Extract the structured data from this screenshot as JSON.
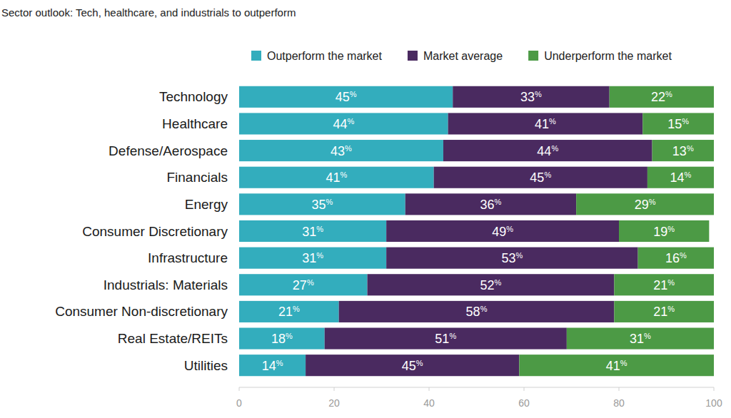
{
  "chart_data": {
    "type": "bar",
    "orientation": "horizontal",
    "stacked": true,
    "data_labels": true,
    "grid": false,
    "legend": "top",
    "title": "Sector outlook: Tech, healthcare, and industrials to outperform",
    "categories": [
      "Technology",
      "Healthcare",
      "Defense/Aerospace",
      "Financials",
      "Energy",
      "Consumer Discretionary",
      "Infrastructure",
      "Industrials: Materials",
      "Consumer Non-discretionary",
      "Real Estate/REITs",
      "Utilities"
    ],
    "series": [
      {
        "name": "Outperform the market",
        "color": "#33adbd",
        "values": [
          45,
          44,
          43,
          41,
          35,
          31,
          31,
          27,
          21,
          18,
          14
        ],
        "value_labels": [
          "45%",
          "44%",
          "43%",
          "41%",
          "35%",
          "31%",
          "31%",
          "27%",
          "21%",
          "18%",
          "14%"
        ]
      },
      {
        "name": "Market average",
        "color": "#4a2a60",
        "values": [
          33,
          41,
          44,
          45,
          36,
          49,
          53,
          52,
          58,
          51,
          45
        ],
        "value_labels": [
          "33%",
          "41%",
          "44%",
          "45%",
          "36%",
          "49%",
          "53%",
          "52%",
          "58%",
          "51%",
          "45%"
        ]
      },
      {
        "name": "Underperform the market",
        "color": "#4c9a45",
        "values": [
          22,
          15,
          13,
          14,
          29,
          19,
          16,
          21,
          21,
          31,
          41
        ],
        "value_labels": [
          "22%",
          "15%",
          "13%",
          "14%",
          "29%",
          "19%",
          "16%",
          "21%",
          "21%",
          "31%",
          "41%"
        ]
      }
    ],
    "xlim": [
      0,
      100
    ],
    "xticks": [
      0,
      20,
      40,
      60,
      80,
      100
    ]
  }
}
